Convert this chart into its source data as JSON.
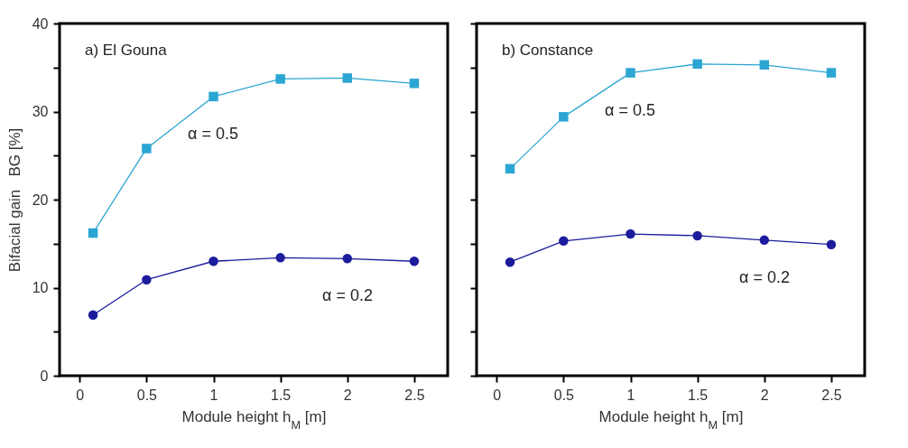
{
  "chart_data": [
    {
      "type": "line",
      "ylabel": "Bifacial gain   BG [%]",
      "xlabel": "Module height h$_{M}$ [m]",
      "annotations": [
        "a) El Gouna",
        "α = 0.5",
        "α = 0.2"
      ],
      "x": [
        0.1,
        0.5,
        1,
        1.5,
        2,
        2.5
      ],
      "series": [
        {
          "color": "#2ba6d3",
          "marker": "square",
          "values": [
            16.2,
            25.8,
            31.7,
            33.7,
            33.8,
            33.2
          ]
        },
        {
          "color": "#1c1c9c",
          "marker": "circle",
          "values": [
            6.9,
            10.9,
            13.0,
            13.4,
            13.3,
            13.0
          ]
        }
      ],
      "xlim": [
        -0.15,
        2.75
      ],
      "xticks": [
        0,
        0.5,
        1,
        1.5,
        2,
        2.5
      ],
      "ylim": [
        0,
        40
      ],
      "yticks": [
        0,
        {
          "value": 5,
          "label": null
        },
        10,
        {
          "value": 15,
          "label": null
        },
        20,
        {
          "value": 25,
          "label": null
        },
        30,
        {
          "value": 35,
          "label": null
        },
        40
      ],
      "grid": false
    },
    {
      "type": "line",
      "xlabel": "Module height h$_{M}$ [m]",
      "annotations": [
        "b) Constance",
        "α = 0.5",
        "α = 0.2"
      ],
      "x": [
        0.1,
        0.5,
        1,
        1.5,
        2,
        2.5
      ],
      "series": [
        {
          "color": "#2ba6d3",
          "marker": "square",
          "values": [
            23.5,
            29.4,
            34.4,
            35.4,
            35.3,
            34.4
          ]
        },
        {
          "color": "#1c1c9c",
          "marker": "circle",
          "values": [
            12.9,
            15.3,
            16.1,
            15.9,
            15.4,
            14.9
          ]
        }
      ],
      "xlim": [
        -0.15,
        2.75
      ],
      "xticks": [
        0,
        0.5,
        1,
        1.5,
        2,
        2.5
      ],
      "ylim": [
        0,
        40
      ],
      "yticks": [
        0,
        {
          "value": 5,
          "label": null
        },
        10,
        {
          "value": 15,
          "label": null
        },
        20,
        {
          "value": 25,
          "label": null
        },
        30,
        {
          "value": 35,
          "label": null
        },
        40
      ],
      "tick_labels": "x",
      "grid": false
    }
  ]
}
